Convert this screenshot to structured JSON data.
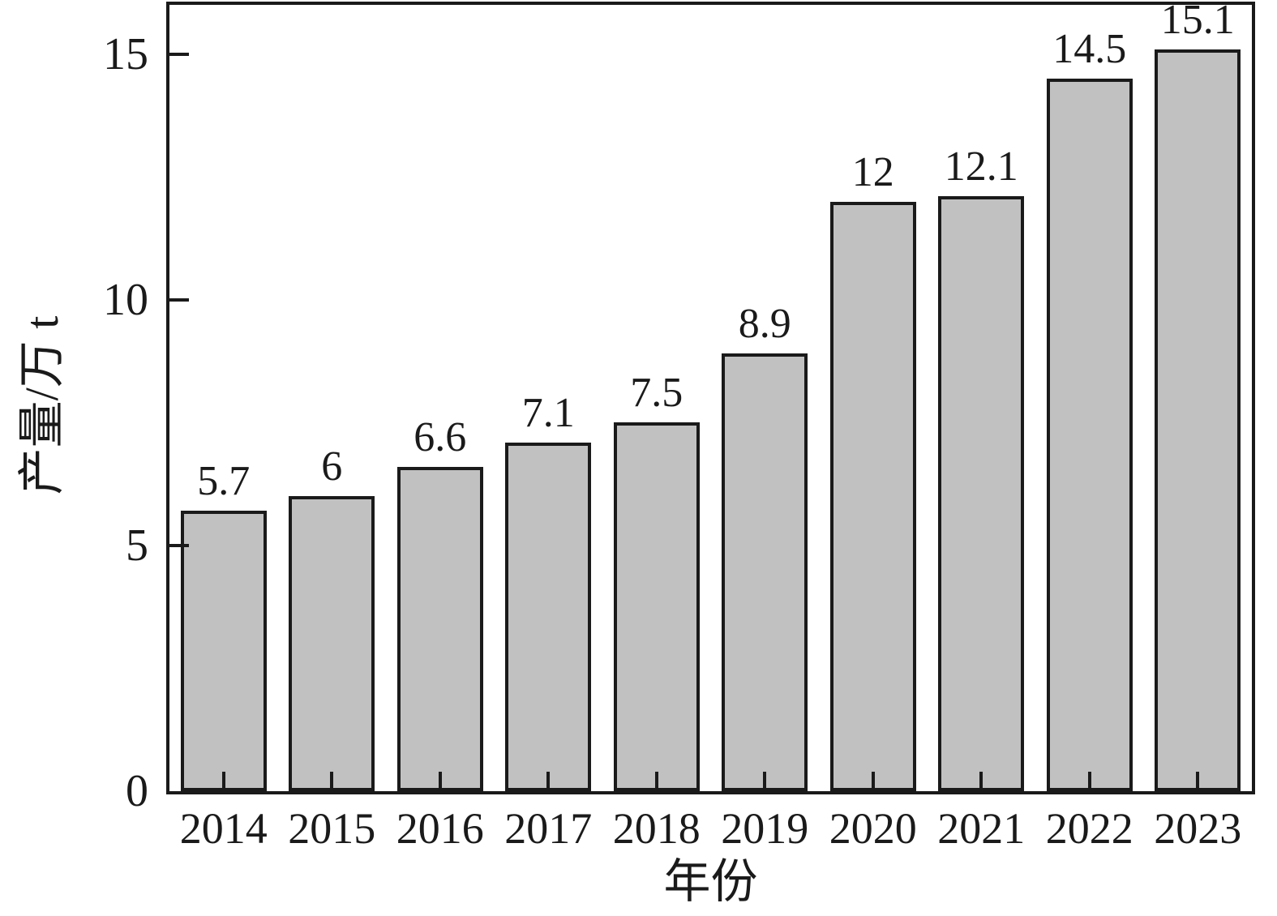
{
  "figure": {
    "background": "#ffffff"
  },
  "chart_data": {
    "type": "bar",
    "title": "",
    "categories": [
      "2014",
      "2015",
      "2016",
      "2017",
      "2018",
      "2019",
      "2020",
      "2021",
      "2022",
      "2023"
    ],
    "values": [
      5.7,
      6,
      6.6,
      7.1,
      7.5,
      8.9,
      12,
      12.1,
      14.5,
      15.1
    ],
    "value_labels": [
      "5.7",
      "6",
      "6.6",
      "7.1",
      "7.5",
      "8.9",
      "12",
      "12.1",
      "14.5",
      "15.1"
    ],
    "xlabel": "年份",
    "ylabel": "产量/万 t",
    "ylim": [
      0,
      16
    ],
    "yticks": [
      0,
      5,
      10,
      15
    ],
    "ytick_labels": [
      "0",
      "5",
      "10",
      "15"
    ],
    "grid": false,
    "legend_position": "none",
    "bar_fill": "#c1c1c1",
    "line_color": "#1a1a1a",
    "text_color": "#1a1a1a"
  }
}
